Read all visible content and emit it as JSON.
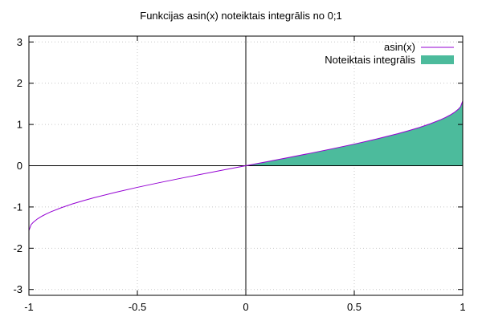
{
  "chart_data": {
    "type": "line",
    "title": "Funkcijas asin(x) noteiktais integrālis no 0;1",
    "xlabel": "",
    "ylabel": "",
    "xlim": [
      -1,
      1
    ],
    "ylim": [
      -3.14159,
      3.14159
    ],
    "x_ticks": [
      {
        "value": -1,
        "label": "-1"
      },
      {
        "value": -0.5,
        "label": "-0.5"
      },
      {
        "value": 0,
        "label": "0"
      },
      {
        "value": 0.5,
        "label": "0.5"
      },
      {
        "value": 1,
        "label": "1"
      }
    ],
    "y_ticks": [
      {
        "value": -3,
        "label": "-3"
      },
      {
        "value": -2,
        "label": "-2"
      },
      {
        "value": -1,
        "label": "-1"
      },
      {
        "value": 0,
        "label": "0"
      },
      {
        "value": 1,
        "label": "1"
      },
      {
        "value": 2,
        "label": "2"
      },
      {
        "value": 3,
        "label": "3"
      }
    ],
    "grid": true,
    "legend_position": "top-right",
    "series": [
      {
        "name": "asin(x)",
        "kind": "line",
        "color": "#9400d3",
        "x": [
          -1,
          -0.99,
          -0.98,
          -0.96,
          -0.94,
          -0.92,
          -0.9,
          -0.85,
          -0.8,
          -0.75,
          -0.7,
          -0.6,
          -0.5,
          -0.4,
          -0.3,
          -0.2,
          -0.1,
          0,
          0.1,
          0.2,
          0.3,
          0.4,
          0.5,
          0.6,
          0.7,
          0.75,
          0.8,
          0.85,
          0.9,
          0.92,
          0.94,
          0.96,
          0.98,
          0.99,
          1
        ],
        "y": [
          -1.571,
          -1.429,
          -1.371,
          -1.287,
          -1.223,
          -1.168,
          -1.12,
          -1.016,
          -0.927,
          -0.848,
          -0.775,
          -0.644,
          -0.524,
          -0.412,
          -0.305,
          -0.201,
          -0.1,
          0,
          0.1,
          0.201,
          0.305,
          0.412,
          0.524,
          0.644,
          0.775,
          0.848,
          0.927,
          1.016,
          1.12,
          1.168,
          1.223,
          1.287,
          1.371,
          1.429,
          1.571
        ]
      },
      {
        "name": "Noteiktais integrālis",
        "kind": "filled-area",
        "color": "#4cbb9c",
        "x": [
          0,
          0.1,
          0.2,
          0.3,
          0.4,
          0.5,
          0.6,
          0.7,
          0.75,
          0.8,
          0.85,
          0.9,
          0.92,
          0.94,
          0.96,
          0.98,
          0.99,
          1
        ],
        "y": [
          0,
          0.1,
          0.201,
          0.305,
          0.412,
          0.524,
          0.644,
          0.775,
          0.848,
          0.927,
          1.016,
          1.12,
          1.168,
          1.223,
          1.287,
          1.371,
          1.429,
          1.571
        ]
      }
    ],
    "colors": {
      "grid": "#c8c8c8",
      "axis": "#000000",
      "border": "#000000"
    }
  }
}
